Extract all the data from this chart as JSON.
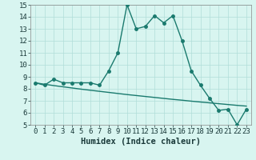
{
  "x": [
    0,
    1,
    2,
    3,
    4,
    5,
    6,
    7,
    8,
    9,
    10,
    11,
    12,
    13,
    14,
    15,
    16,
    17,
    18,
    19,
    20,
    21,
    22,
    23
  ],
  "y_humidex": [
    8.5,
    8.3,
    8.8,
    8.5,
    8.5,
    8.5,
    8.5,
    8.3,
    9.5,
    11.0,
    15.0,
    13.0,
    13.2,
    14.1,
    13.5,
    14.1,
    12.0,
    9.5,
    8.3,
    7.2,
    6.2,
    6.3,
    5.0,
    6.3
  ],
  "y_trend": [
    8.5,
    8.38,
    8.27,
    8.17,
    8.07,
    7.97,
    7.88,
    7.79,
    7.7,
    7.61,
    7.52,
    7.44,
    7.36,
    7.28,
    7.2,
    7.12,
    7.05,
    6.97,
    6.9,
    6.83,
    6.76,
    6.69,
    6.62,
    6.56
  ],
  "line_color": "#1a7a6e",
  "bg_color": "#d8f5f0",
  "grid_color": "#b0ddd8",
  "xlabel": "Humidex (Indice chaleur)",
  "xlim": [
    -0.5,
    23.5
  ],
  "ylim": [
    5,
    15
  ],
  "yticks": [
    5,
    6,
    7,
    8,
    9,
    10,
    11,
    12,
    13,
    14,
    15
  ],
  "xticks": [
    0,
    1,
    2,
    3,
    4,
    5,
    6,
    7,
    8,
    9,
    10,
    11,
    12,
    13,
    14,
    15,
    16,
    17,
    18,
    19,
    20,
    21,
    22,
    23
  ],
  "marker_size": 2.5,
  "line_width": 1.0,
  "tick_fontsize": 6.5,
  "xlabel_fontsize": 7.5
}
